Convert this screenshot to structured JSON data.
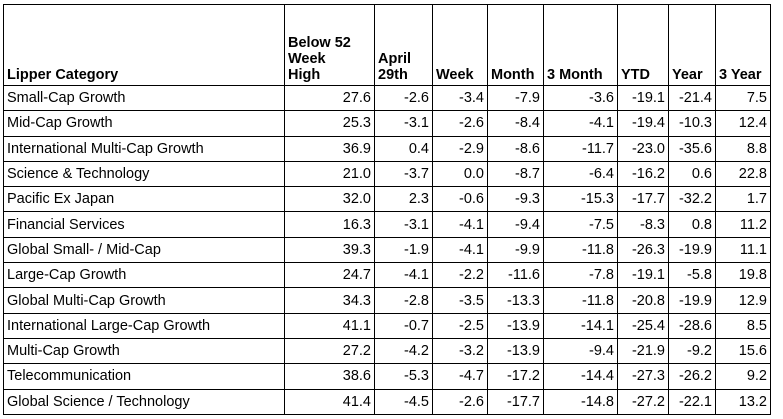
{
  "table": {
    "header": [
      "Lipper Category",
      [
        "Below 52",
        "Week",
        "High"
      ],
      [
        "April",
        "29th"
      ],
      "Week",
      "Month",
      "3 Month",
      "YTD",
      "Year",
      "3 Year"
    ],
    "rows": [
      [
        "Small-Cap Growth",
        "27.6",
        "-2.6",
        "-3.4",
        "-7.9",
        "-3.6",
        "-19.1",
        "-21.4",
        "7.5"
      ],
      [
        "Mid-Cap Growth",
        "25.3",
        "-3.1",
        "-2.6",
        "-8.4",
        "-4.1",
        "-19.4",
        "-10.3",
        "12.4"
      ],
      [
        "International Multi-Cap Growth",
        "36.9",
        "0.4",
        "-2.9",
        "-8.6",
        "-11.7",
        "-23.0",
        "-35.6",
        "8.8"
      ],
      [
        "Science & Technology",
        "21.0",
        "-3.7",
        "0.0",
        "-8.7",
        "-6.4",
        "-16.2",
        "0.6",
        "22.8"
      ],
      [
        "Pacific Ex Japan",
        "32.0",
        "2.3",
        "-0.6",
        "-9.3",
        "-15.3",
        "-17.7",
        "-32.2",
        "1.7"
      ],
      [
        "Financial Services",
        "16.3",
        "-3.1",
        "-4.1",
        "-9.4",
        "-7.5",
        "-8.3",
        "0.8",
        "11.2"
      ],
      [
        "Global Small- / Mid-Cap",
        "39.3",
        "-1.9",
        "-4.1",
        "-9.9",
        "-11.8",
        "-26.3",
        "-19.9",
        "11.1"
      ],
      [
        "Large-Cap Growth",
        "24.7",
        "-4.1",
        "-2.2",
        "-11.6",
        "-7.8",
        "-19.1",
        "-5.8",
        "19.8"
      ],
      [
        "Global Multi-Cap Growth",
        "34.3",
        "-2.8",
        "-3.5",
        "-13.3",
        "-11.8",
        "-20.8",
        "-19.9",
        "12.9"
      ],
      [
        "International Large-Cap Growth",
        "41.1",
        "-0.7",
        "-2.5",
        "-13.9",
        "-14.1",
        "-25.4",
        "-28.6",
        "8.5"
      ],
      [
        "Multi-Cap Growth",
        "27.2",
        "-4.2",
        "-3.2",
        "-13.9",
        "-9.4",
        "-21.9",
        "-9.2",
        "15.6"
      ],
      [
        "Telecommunication",
        "38.6",
        "-5.3",
        "-4.7",
        "-17.2",
        "-14.4",
        "-27.3",
        "-26.2",
        "9.2"
      ],
      [
        "Global Science / Technology",
        "41.4",
        "-4.5",
        "-2.6",
        "-17.7",
        "-14.8",
        "-27.2",
        "-22.1",
        "13.2"
      ]
    ]
  }
}
